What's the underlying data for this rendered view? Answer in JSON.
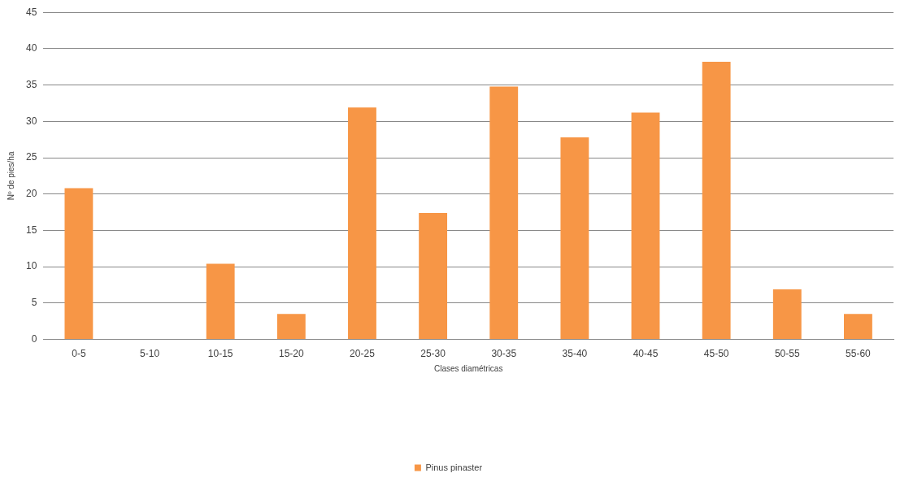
{
  "chart_data": {
    "type": "bar",
    "xlabel": "Clases diamétricas",
    "ylabel": "Nº de pies/ha",
    "categories": [
      "0-5",
      "5-10",
      "10-15",
      "15-20",
      "20-25",
      "25-30",
      "30-35",
      "35-40",
      "40-45",
      "45-50",
      "50-55",
      "55-60"
    ],
    "series": [
      {
        "name": "Pinus pinaster",
        "color": "#f79646",
        "values": [
          20.8,
          0,
          10.4,
          3.5,
          31.9,
          17.4,
          34.8,
          27.8,
          31.2,
          38.2,
          6.9,
          3.5
        ]
      }
    ],
    "ylim": [
      0,
      45
    ],
    "yticks": [
      0,
      5,
      10,
      15,
      20,
      25,
      30,
      35,
      40,
      45
    ],
    "grid": "y",
    "legend": "bottom"
  }
}
